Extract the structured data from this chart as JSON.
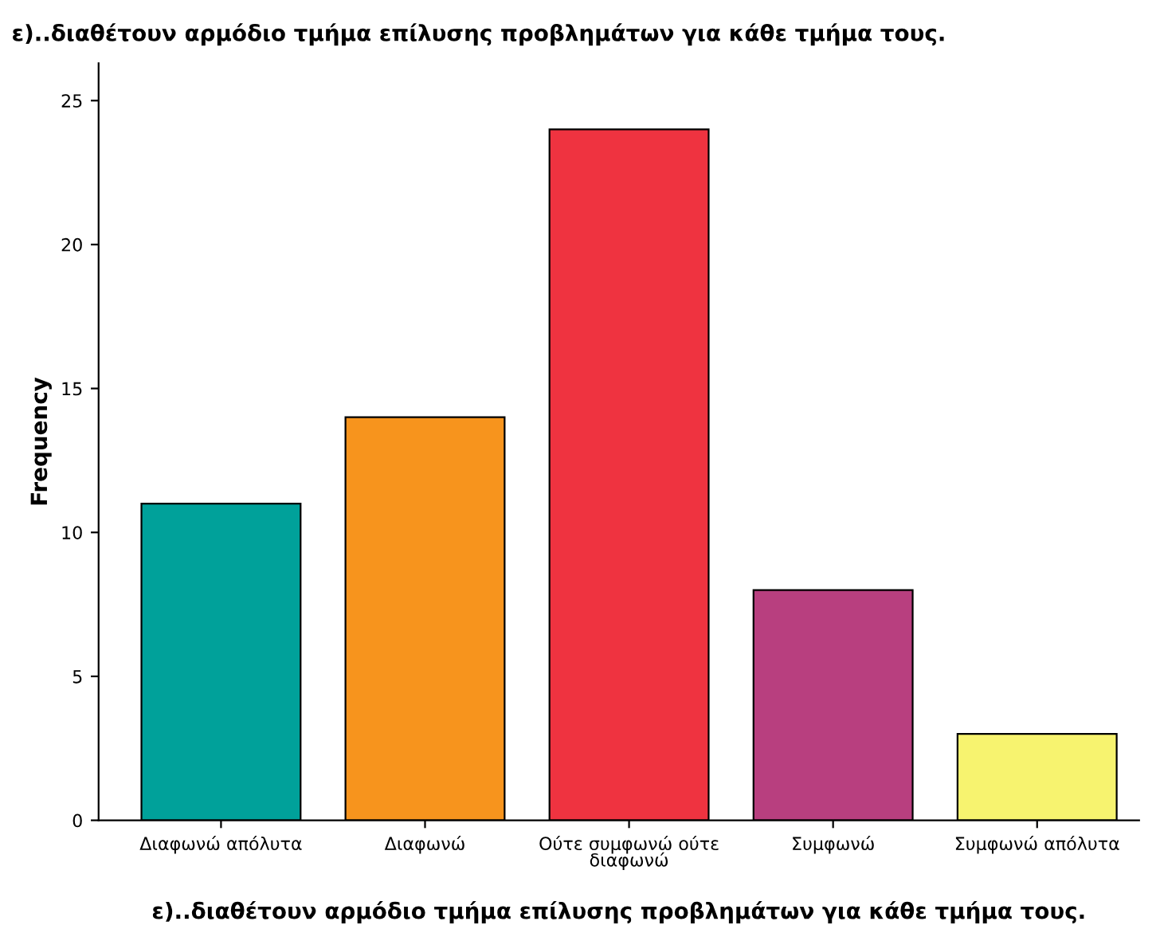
{
  "chart_data": {
    "type": "bar",
    "title": "ε)..διαθέτουν αρμόδιο τμήμα επίλυσης προβλημάτων για κάθε τμήμα τους.",
    "xlabel": "ε)..διαθέτουν αρμόδιο τμήμα επίλυσης προβλημάτων για κάθε τμήμα τους.",
    "ylabel": "Frequency",
    "categories": [
      "Διαφωνώ απόλυτα",
      "Διαφωνώ",
      "Ούτε συμφωνώ ούτε\nδιαφωνώ",
      "Συμφωνώ",
      "Συμφωνώ απόλυτα"
    ],
    "values": [
      11,
      14,
      24,
      8,
      3
    ],
    "colors": [
      "#00a19a",
      "#f7941d",
      "#ef3340",
      "#b83f7f",
      "#f7f36f"
    ],
    "ylim": [
      0,
      26.3
    ],
    "yticks": [
      0,
      5,
      10,
      15,
      20,
      25
    ],
    "grid": false,
    "legend": false
  }
}
